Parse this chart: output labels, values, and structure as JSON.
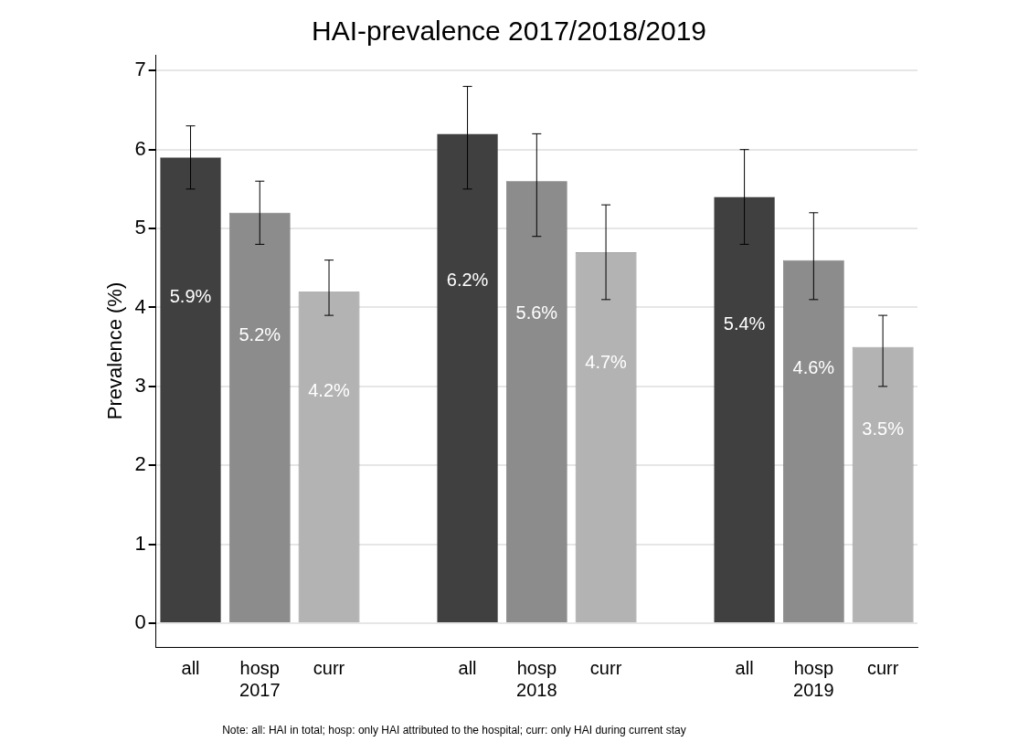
{
  "chart_data": {
    "type": "bar",
    "title": "HAI-prevalence 2017/2018/2019",
    "ylabel": "Prevalence (%)",
    "categories": [
      "all",
      "hosp\n2017",
      "curr",
      null,
      "all",
      "hosp\n2018",
      "curr",
      null,
      "all",
      "hosp\n2019",
      "curr"
    ],
    "values": [
      5.9,
      5.2,
      4.2,
      null,
      6.2,
      5.6,
      4.7,
      null,
      5.4,
      4.6,
      3.5
    ],
    "colors": [
      "#404040",
      "#8c8c8c",
      "#b3b3b3",
      "#ffffff",
      "#404040",
      "#8c8c8c",
      "#b3b3b3",
      "#ffffff",
      "#404040",
      "#8c8c8c",
      "#b3b3b3"
    ],
    "errors": [
      [
        5.5,
        6.3
      ],
      [
        4.8,
        5.6
      ],
      [
        3.9,
        4.6
      ],
      null,
      [
        5.5,
        6.8
      ],
      [
        4.9,
        6.2
      ],
      [
        4.1,
        5.3
      ],
      null,
      [
        4.8,
        6.0
      ],
      [
        4.1,
        5.2
      ],
      [
        3.0,
        3.9
      ]
    ],
    "value_labels": [
      "5.9%",
      "5.2%",
      "4.2%",
      null,
      "6.2%",
      "5.6%",
      "4.7%",
      null,
      "5.4%",
      "4.6%",
      "3.5%"
    ],
    "ylim": [
      -0.3,
      7.2
    ],
    "yticks": [
      0,
      1,
      2,
      3,
      4,
      5,
      6,
      7
    ],
    "grid": "y",
    "legend": false,
    "annotations": [
      "Note: all: HAI in total; hosp: only HAI attributed to the hospital; curr: only HAI during current stay"
    ]
  }
}
